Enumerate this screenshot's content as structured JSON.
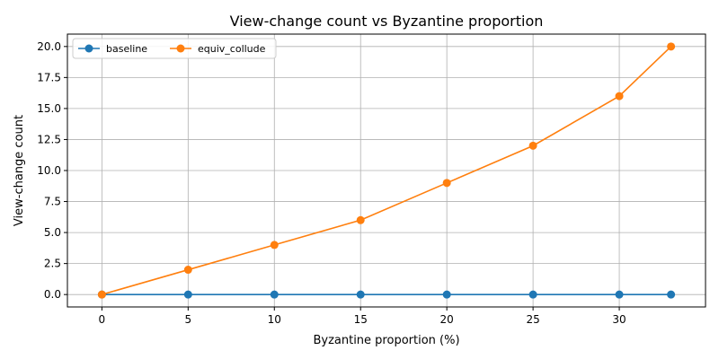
{
  "chart_data": {
    "type": "line",
    "title": "View-change count vs Byzantine proportion",
    "xlabel": "Byzantine proportion (%)",
    "ylabel": "View-change count",
    "x": [
      0,
      5,
      10,
      15,
      20,
      25,
      30,
      33
    ],
    "xlim": [
      -2,
      35
    ],
    "ylim": [
      -1,
      21
    ],
    "xticks": [
      0,
      5,
      10,
      15,
      20,
      25,
      30
    ],
    "yticks": [
      0.0,
      2.5,
      5.0,
      7.5,
      10.0,
      12.5,
      15.0,
      17.5,
      20.0
    ],
    "xtick_labels": [
      "0",
      "5",
      "10",
      "15",
      "20",
      "25",
      "30"
    ],
    "ytick_labels": [
      "0.0",
      "2.5",
      "5.0",
      "7.5",
      "10.0",
      "12.5",
      "15.0",
      "17.5",
      "20.0"
    ],
    "grid": true,
    "legend_position": "top-left",
    "series": [
      {
        "name": "baseline",
        "color": "#1f77b4",
        "values": [
          0,
          0,
          0,
          0,
          0,
          0,
          0,
          0
        ]
      },
      {
        "name": "equiv_collude",
        "color": "#ff7f0e",
        "values": [
          0,
          2,
          4,
          6,
          9,
          12,
          16,
          20
        ]
      }
    ]
  }
}
